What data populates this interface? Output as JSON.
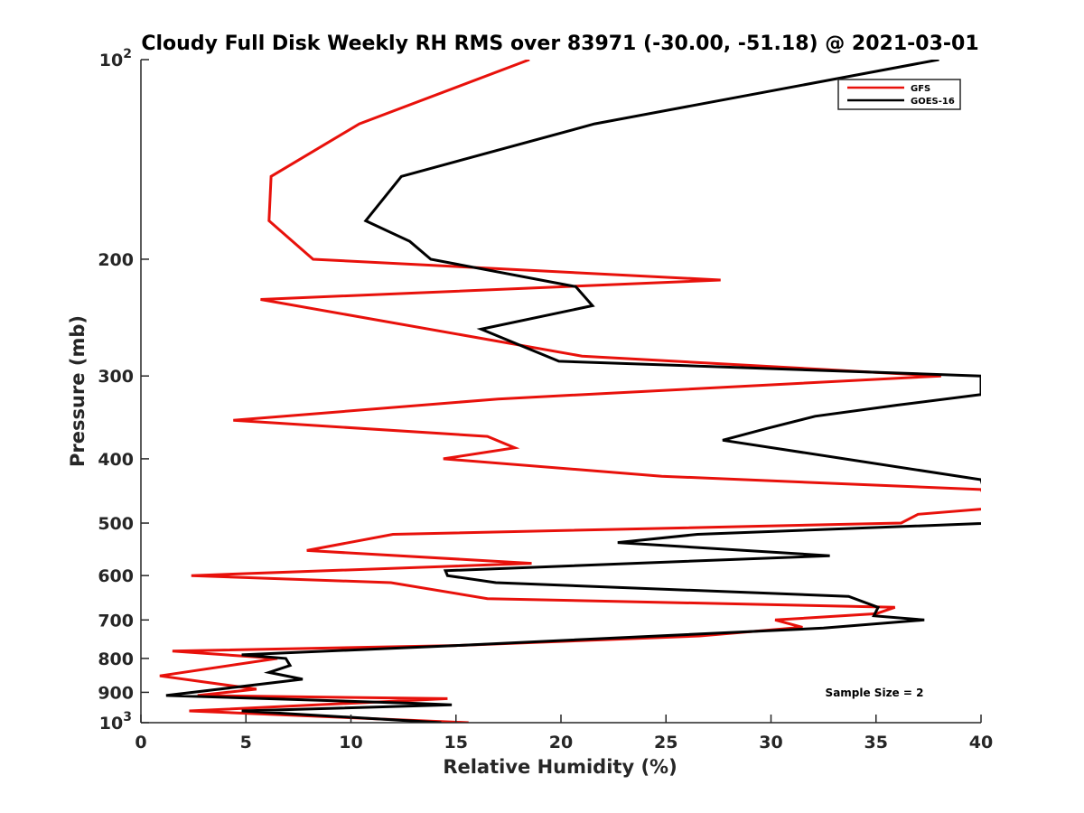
{
  "chart_data": {
    "type": "line",
    "title": "Cloudy Full Disk Weekly RH RMS over 83971 (-30.00, -51.18) @ 2021-03-01",
    "xlabel": "Relative Humidity (%)",
    "ylabel": "Pressure (mb)",
    "xlim": [
      0,
      40
    ],
    "ylim": [
      100,
      1000
    ],
    "yscale": "log",
    "y_reversed": true,
    "grid": false,
    "legend_position": "top-right",
    "x_ticks": [
      0,
      5,
      10,
      15,
      20,
      25,
      30,
      35,
      40
    ],
    "x_tick_labels": [
      "0",
      "5",
      "10",
      "15",
      "20",
      "25",
      "30",
      "35",
      "40"
    ],
    "y_ticks": [
      100,
      200,
      300,
      400,
      500,
      600,
      700,
      800,
      900,
      1000
    ],
    "y_tick_labels": [
      {
        "base": "10",
        "sup": "2"
      },
      {
        "base": "200",
        "sup": ""
      },
      {
        "base": "300",
        "sup": ""
      },
      {
        "base": "400",
        "sup": ""
      },
      {
        "base": "500",
        "sup": ""
      },
      {
        "base": "600",
        "sup": ""
      },
      {
        "base": "700",
        "sup": ""
      },
      {
        "base": "800",
        "sup": ""
      },
      {
        "base": "900",
        "sup": ""
      },
      {
        "base": "10",
        "sup": "3"
      }
    ],
    "annotation": "Sample Size = 2",
    "series": [
      {
        "name": "GFS",
        "color": "#e8110b",
        "points": [
          [
            18.5,
            100
          ],
          [
            10.4,
            125
          ],
          [
            6.2,
            150
          ],
          [
            6.1,
            175
          ],
          [
            8.2,
            200
          ],
          [
            27.6,
            215
          ],
          [
            5.7,
            230
          ],
          [
            21.0,
            280
          ],
          [
            38.1,
            300
          ],
          [
            17.0,
            325
          ],
          [
            4.4,
            350
          ],
          [
            16.5,
            370
          ],
          [
            17.8,
            385
          ],
          [
            14.4,
            400
          ],
          [
            24.8,
            425
          ],
          [
            40.0,
            445
          ],
          [
            40.5,
            475
          ],
          [
            37.0,
            485
          ],
          [
            36.2,
            500
          ],
          [
            12.0,
            520
          ],
          [
            7.9,
            550
          ],
          [
            18.6,
            575
          ],
          [
            2.4,
            600
          ],
          [
            11.9,
            615
          ],
          [
            16.5,
            650
          ],
          [
            35.9,
            670
          ],
          [
            35.0,
            685
          ],
          [
            30.2,
            700
          ],
          [
            31.5,
            718
          ],
          [
            26.6,
            740
          ],
          [
            15.0,
            765
          ],
          [
            1.5,
            780
          ],
          [
            6.5,
            800
          ],
          [
            0.9,
            850
          ],
          [
            5.5,
            890
          ],
          [
            2.7,
            910
          ],
          [
            14.6,
            920
          ],
          [
            2.3,
            960
          ],
          [
            15.6,
            1000
          ]
        ]
      },
      {
        "name": "GOES-16",
        "color": "#000000",
        "points": [
          [
            38.0,
            100
          ],
          [
            21.6,
            125
          ],
          [
            12.4,
            150
          ],
          [
            10.7,
            175
          ],
          [
            12.8,
            188
          ],
          [
            13.8,
            200
          ],
          [
            20.7,
            220
          ],
          [
            21.5,
            235
          ],
          [
            16.2,
            255
          ],
          [
            19.9,
            285
          ],
          [
            40.0,
            300
          ],
          [
            40.0,
            320
          ],
          [
            36.0,
            332
          ],
          [
            32.1,
            345
          ],
          [
            29.8,
            360
          ],
          [
            27.7,
            375
          ],
          [
            40.0,
            430
          ],
          [
            40.6,
            500
          ],
          [
            26.5,
            520
          ],
          [
            22.7,
            535
          ],
          [
            32.8,
            560
          ],
          [
            14.5,
            590
          ],
          [
            14.6,
            600
          ],
          [
            16.9,
            615
          ],
          [
            33.7,
            645
          ],
          [
            35.1,
            670
          ],
          [
            34.9,
            690
          ],
          [
            37.3,
            700
          ],
          [
            32.5,
            720
          ],
          [
            15.0,
            765
          ],
          [
            4.8,
            790
          ],
          [
            6.9,
            800
          ],
          [
            7.1,
            820
          ],
          [
            6.1,
            840
          ],
          [
            7.7,
            860
          ],
          [
            1.2,
            910
          ],
          [
            13.1,
            935
          ],
          [
            14.8,
            940
          ],
          [
            4.8,
            960
          ],
          [
            14.3,
            1000
          ]
        ]
      }
    ]
  }
}
